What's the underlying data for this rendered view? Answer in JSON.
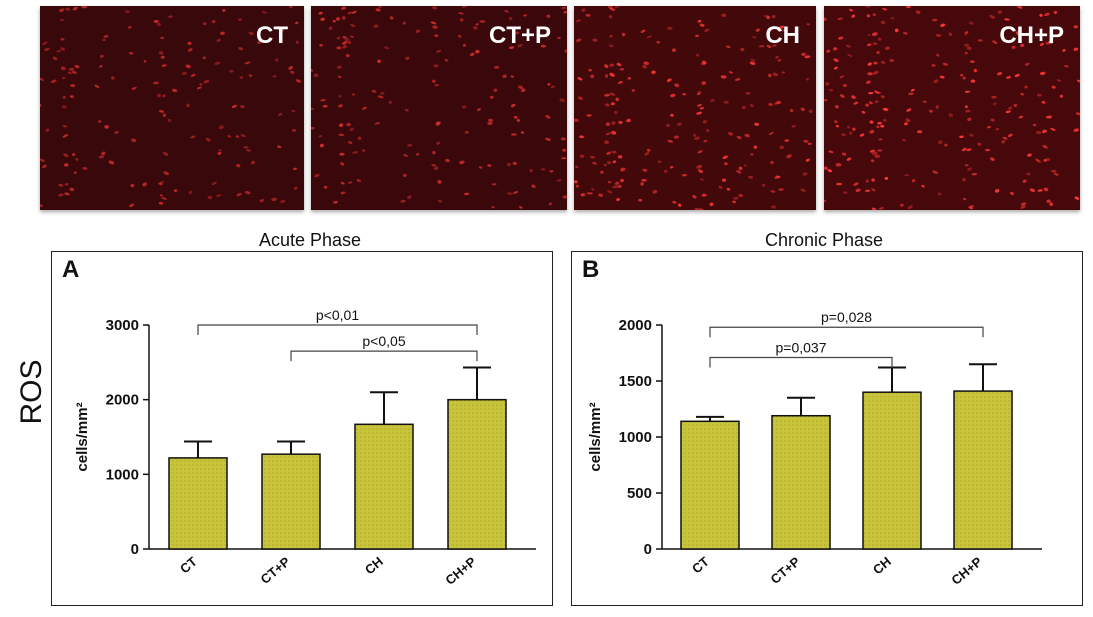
{
  "micrographs": [
    {
      "label": "CT",
      "brightness": 0.55
    },
    {
      "label": "CT+P",
      "brightness": 0.6
    },
    {
      "label": "CH",
      "brightness": 0.85
    },
    {
      "label": "CH+P",
      "brightness": 1.0
    }
  ],
  "ros_label": "ROS",
  "colors": {
    "bar_fill": "#c7c33a",
    "dot": "#8f8b1e",
    "fluor": "#ff3838"
  },
  "chart_data": [
    {
      "type": "bar",
      "panel": "A",
      "title": "Acute Phase",
      "ylabel": "cells/mm²",
      "categories": [
        "CT",
        "CT+P",
        "CH",
        "CH+P"
      ],
      "values": [
        1220,
        1270,
        1670,
        2000
      ],
      "errors": [
        220,
        170,
        430,
        430
      ],
      "ylim": [
        0,
        3000
      ],
      "yticks": [
        0,
        1000,
        2000,
        3000
      ],
      "annotations": [
        {
          "from": 0,
          "to": 3,
          "text": "p<0,01",
          "y": 3000
        },
        {
          "from": 1,
          "to": 3,
          "text": "p<0,05",
          "y": 2650
        }
      ]
    },
    {
      "type": "bar",
      "panel": "B",
      "title": "Chronic Phase",
      "ylabel": "cells/mm²",
      "categories": [
        "CT",
        "CT+P",
        "CH",
        "CH+P"
      ],
      "values": [
        1140,
        1190,
        1400,
        1410
      ],
      "errors": [
        40,
        160,
        220,
        240
      ],
      "ylim": [
        0,
        2000
      ],
      "yticks": [
        0,
        500,
        1000,
        1500,
        2000
      ],
      "annotations": [
        {
          "from": 0,
          "to": 3,
          "text": "p=0,028",
          "y": 1980
        },
        {
          "from": 0,
          "to": 2,
          "text": "p=0,037",
          "y": 1710
        }
      ]
    }
  ]
}
